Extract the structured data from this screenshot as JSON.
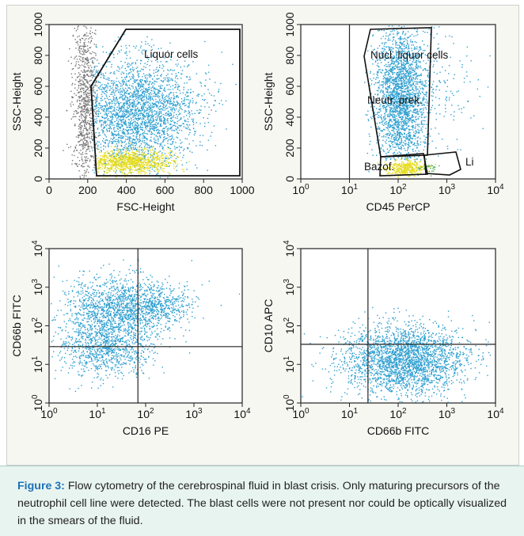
{
  "panels": [
    {
      "id": "fsc-ssc",
      "xlabel": "FSC-Height",
      "ylabel": "SSC-Height",
      "xscale": "linear",
      "yscale": "linear",
      "xticks": [
        "0",
        "200",
        "400",
        "600",
        "800",
        "1000"
      ],
      "yticks": [
        "0",
        "200",
        "400",
        "600",
        "800",
        "1000"
      ],
      "gate_labels": [
        "Liquor cells"
      ]
    },
    {
      "id": "cd45-ssc",
      "xlabel": "CD45 PerCP",
      "ylabel": "SSC-Height",
      "xscale": "log",
      "yscale": "linear",
      "xticks": [
        [
          "10",
          "0"
        ],
        [
          "10",
          "1"
        ],
        [
          "10",
          "2"
        ],
        [
          "10",
          "3"
        ],
        [
          "10",
          "4"
        ]
      ],
      "yticks": [
        "0",
        "200",
        "400",
        "600",
        "800",
        "1000"
      ],
      "gate_labels": [
        "Nucl. liquor cells",
        "Neutr. prek.",
        "Bazof.",
        "Li"
      ]
    },
    {
      "id": "cd16-cd66b",
      "xlabel": "CD16 PE",
      "ylabel": "CD66b FITC",
      "xscale": "log",
      "yscale": "log",
      "xticks": [
        [
          "10",
          "0"
        ],
        [
          "10",
          "1"
        ],
        [
          "10",
          "2"
        ],
        [
          "10",
          "3"
        ],
        [
          "10",
          "4"
        ]
      ],
      "yticks": [
        [
          "10",
          "0"
        ],
        [
          "10",
          "1"
        ],
        [
          "10",
          "2"
        ],
        [
          "10",
          "3"
        ],
        [
          "10",
          "4"
        ]
      ],
      "gate_labels": []
    },
    {
      "id": "cd66b-cd10",
      "xlabel": "CD66b FITC",
      "ylabel": "CD10 APC",
      "xscale": "log",
      "yscale": "log",
      "xticks": [
        [
          "10",
          "0"
        ],
        [
          "10",
          "1"
        ],
        [
          "10",
          "2"
        ],
        [
          "10",
          "3"
        ],
        [
          "10",
          "4"
        ]
      ],
      "yticks": [
        [
          "10",
          "0"
        ],
        [
          "10",
          "1"
        ],
        [
          "10",
          "2"
        ],
        [
          "10",
          "3"
        ],
        [
          "10",
          "4"
        ]
      ],
      "gate_labels": []
    }
  ],
  "colors": {
    "dots_main": "#2f9fd0",
    "dots_yellow": "#e6dc1e",
    "dots_gray": "#777777",
    "dots_green": "#4aa84a",
    "caption_label": "#1d72b8",
    "caption_bg": "#e8f4f0"
  },
  "caption": {
    "label": "Figure 3:",
    "text": "Flow cytometry of the cerebrospinal fluid in blast crisis. Only maturing precursors of the neutrophil cell line were detected. The blast cells were not present nor could be optically visualized in the smears of the fluid."
  }
}
